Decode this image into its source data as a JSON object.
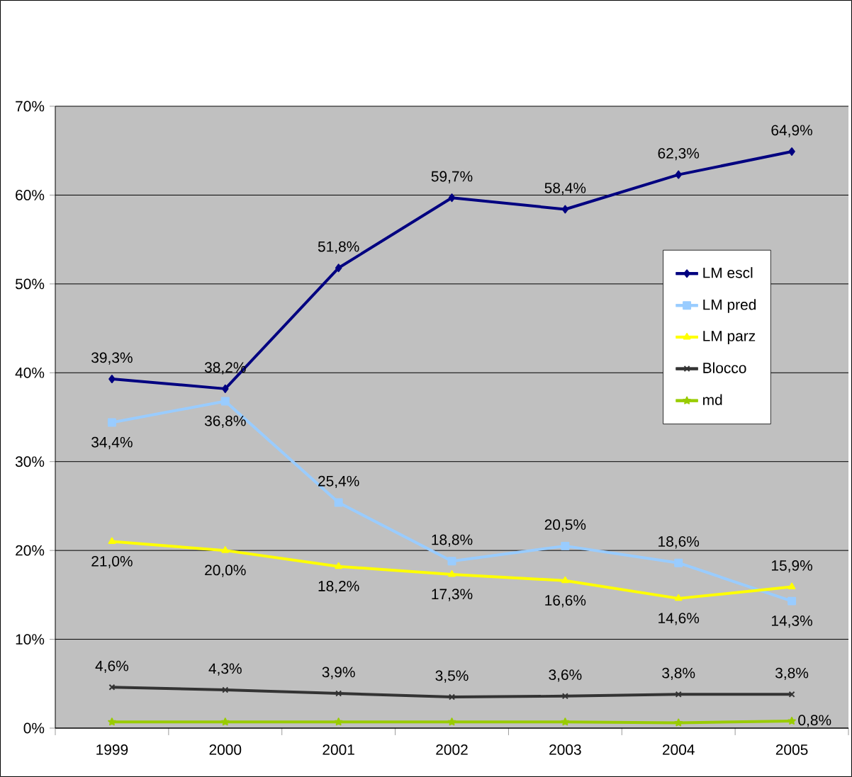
{
  "chart_data": {
    "type": "line",
    "categories": [
      "1999",
      "2000",
      "2001",
      "2002",
      "2003",
      "2004",
      "2005"
    ],
    "series": [
      {
        "name": "LM escl",
        "color": "#000080",
        "marker": "diamond",
        "values": [
          39.3,
          38.2,
          51.8,
          59.7,
          58.4,
          62.3,
          64.9
        ],
        "value_labels": [
          "39,3%",
          "38,2%",
          "51,8%",
          "59,7%",
          "58,4%",
          "62,3%",
          "64,9%"
        ]
      },
      {
        "name": "LM pred",
        "color": "#99ccff",
        "marker": "square",
        "values": [
          34.4,
          36.8,
          25.4,
          18.8,
          20.5,
          18.6,
          14.3
        ],
        "value_labels": [
          "34,4%",
          "36,8%",
          "25,4%",
          "18,8%",
          "20,5%",
          "18,6%",
          "14,3%"
        ]
      },
      {
        "name": "LM parz",
        "color": "#ffff00",
        "marker": "triangle",
        "values": [
          21.0,
          20.0,
          18.2,
          17.3,
          16.6,
          14.6,
          15.9
        ],
        "value_labels": [
          "21,0%",
          "20,0%",
          "18,2%",
          "17,3%",
          "16,6%",
          "14,6%",
          "15,9%"
        ]
      },
      {
        "name": "Blocco",
        "color": "#333333",
        "marker": "cross",
        "values": [
          4.6,
          4.3,
          3.9,
          3.5,
          3.6,
          3.8,
          3.8
        ],
        "value_labels": [
          "4,6%",
          "4,3%",
          "3,9%",
          "3,5%",
          "3,6%",
          "3,8%",
          "3,8%"
        ]
      },
      {
        "name": "md",
        "color": "#99cc00",
        "marker": "star",
        "values": [
          0.7,
          0.7,
          0.7,
          0.7,
          0.7,
          0.6,
          0.8
        ],
        "value_labels": [
          null,
          null,
          null,
          null,
          null,
          null,
          "0,8%"
        ]
      }
    ],
    "ylim": [
      0,
      70
    ],
    "yticks": [
      {
        "value": 0,
        "label": "0%"
      },
      {
        "value": 10,
        "label": "10%"
      },
      {
        "value": 20,
        "label": "20%"
      },
      {
        "value": 30,
        "label": "30%"
      },
      {
        "value": 40,
        "label": "40%"
      },
      {
        "value": 50,
        "label": "50%"
      },
      {
        "value": 60,
        "label": "60%"
      },
      {
        "value": 70,
        "label": "70%"
      }
    ],
    "grid": "y",
    "legend": "right",
    "line_style": "solid"
  }
}
